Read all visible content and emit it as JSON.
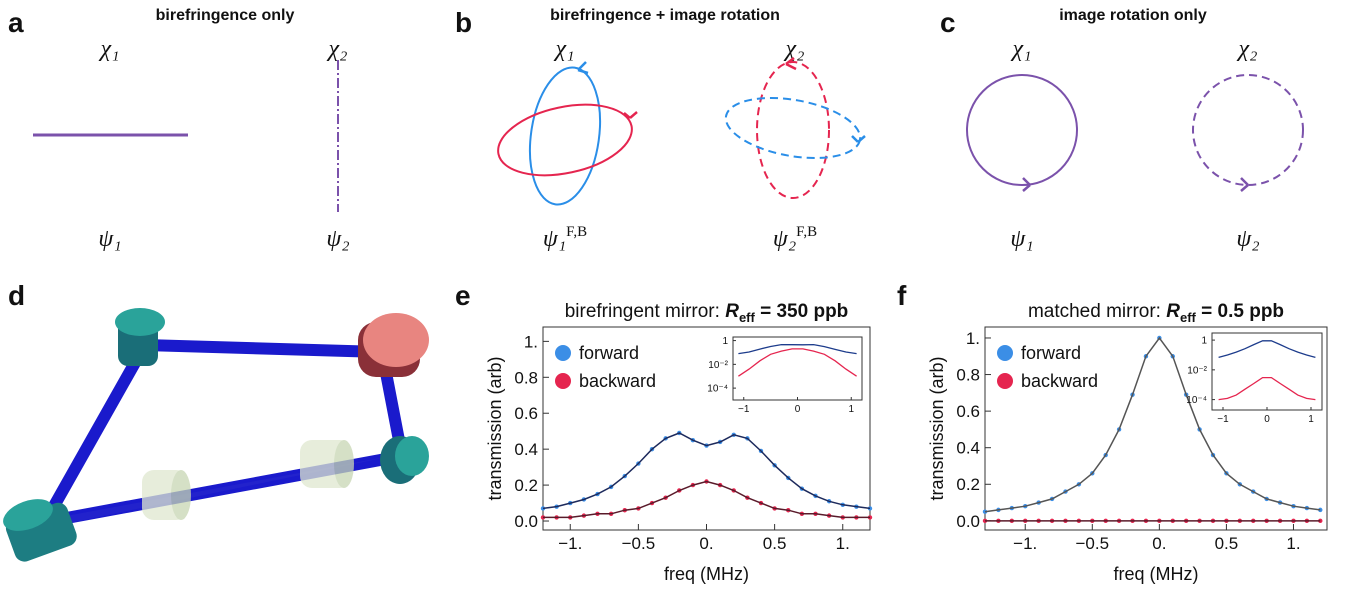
{
  "diagram": {
    "panels": [
      {
        "label": "a",
        "title": "birefringence only",
        "modes": [
          {
            "chi": "χ₁",
            "psi": "ψ₁"
          },
          {
            "chi": "χ₂",
            "psi": "ψ₂"
          }
        ]
      },
      {
        "label": "b",
        "title": "birefringence + image rotation",
        "modes": [
          {
            "chi": "χ₁",
            "psi": "ψ₁",
            "psi_superscript": "F,B"
          },
          {
            "chi": "χ₂",
            "psi": "ψ₂",
            "psi_superscript": "F,B"
          }
        ]
      },
      {
        "label": "c",
        "title": "image rotation only",
        "modes": [
          {
            "chi": "χ₁",
            "psi": "ψ₁"
          },
          {
            "chi": "χ₂",
            "psi": "ψ₂"
          }
        ]
      }
    ],
    "render_label": "d"
  },
  "chart_data": [
    {
      "type": "scatter",
      "panel_label": "e",
      "title": "birefringent mirror: ",
      "title_symbol": "R",
      "title_subscript": "eff",
      "title_rest": " = 350 ppb",
      "x_label": "freq (MHz)",
      "y_label": "transmission (arb)",
      "legend": "upper left",
      "x": [
        -1.2,
        -1.1,
        -1.0,
        -0.9,
        -0.8,
        -0.7,
        -0.6,
        -0.5,
        -0.4,
        -0.3,
        -0.2,
        -0.1,
        0,
        0.1,
        0.2,
        0.3,
        0.4,
        0.5,
        0.6,
        0.7,
        0.8,
        0.9,
        1.0,
        1.1,
        1.2
      ],
      "series": [
        {
          "name": "forward",
          "color": "#3b8ee6",
          "line_color": "#1d2a5c",
          "values": [
            0.07,
            0.08,
            0.1,
            0.12,
            0.15,
            0.19,
            0.25,
            0.32,
            0.4,
            0.46,
            0.49,
            0.45,
            0.42,
            0.44,
            0.48,
            0.46,
            0.39,
            0.31,
            0.24,
            0.18,
            0.14,
            0.11,
            0.09,
            0.08,
            0.07
          ]
        },
        {
          "name": "backward",
          "color": "#e5254f",
          "line_color": "#5a1a2a",
          "values": [
            0.02,
            0.02,
            0.02,
            0.03,
            0.04,
            0.04,
            0.06,
            0.07,
            0.1,
            0.13,
            0.17,
            0.2,
            0.22,
            0.2,
            0.17,
            0.13,
            0.1,
            0.07,
            0.06,
            0.04,
            0.04,
            0.03,
            0.02,
            0.02,
            0.02
          ]
        }
      ],
      "xlim": [
        -1.2,
        1.2
      ],
      "xticks": [
        {
          "value": -1,
          "label": "−1."
        },
        {
          "value": -0.5,
          "label": "−0.5"
        },
        {
          "value": 0,
          "label": "0."
        },
        0.5,
        {
          "value": 1,
          "label": "1."
        }
      ],
      "ylim": [
        -0.05,
        1.08
      ],
      "yticks": [
        {
          "value": 0,
          "label": "0.0"
        },
        0.2,
        0.4,
        0.6,
        0.8,
        {
          "value": 1,
          "label": "1."
        }
      ]
    },
    {
      "type": "scatter",
      "panel_label": "f",
      "title": "matched mirror: ",
      "title_symbol": "R",
      "title_subscript": "eff",
      "title_rest": " = 0.5 ppb",
      "x_label": "freq (MHz)",
      "y_label": "transmission (arb)",
      "legend": "upper left",
      "x": [
        -1.3,
        -1.2,
        -1.1,
        -1.0,
        -0.9,
        -0.8,
        -0.7,
        -0.6,
        -0.5,
        -0.4,
        -0.3,
        -0.2,
        -0.1,
        0,
        0.1,
        0.2,
        0.3,
        0.4,
        0.5,
        0.6,
        0.7,
        0.8,
        0.9,
        1.0,
        1.1,
        1.2
      ],
      "series": [
        {
          "name": "forward",
          "color": "#3b8ee6",
          "line_color": "#555555",
          "values": [
            0.05,
            0.06,
            0.07,
            0.08,
            0.1,
            0.12,
            0.16,
            0.2,
            0.26,
            0.36,
            0.5,
            0.69,
            0.9,
            1,
            0.9,
            0.69,
            0.5,
            0.36,
            0.26,
            0.2,
            0.16,
            0.12,
            0.1,
            0.08,
            0.07,
            0.06
          ]
        },
        {
          "name": "backward",
          "color": "#e5254f",
          "line_color": "#5a1a2a",
          "values": [
            0,
            0,
            0,
            0,
            0,
            0,
            0,
            0,
            0,
            0,
            0,
            0,
            0,
            0,
            0,
            0,
            0,
            0,
            0,
            0,
            0,
            0,
            0,
            0,
            0,
            0
          ]
        }
      ],
      "xlim": [
        -1.3,
        1.25
      ],
      "xticks": [
        {
          "value": -1,
          "label": "−1."
        },
        {
          "value": -0.5,
          "label": "−0.5"
        },
        {
          "value": 0,
          "label": "0."
        },
        0.5,
        {
          "value": 1,
          "label": "1."
        }
      ],
      "ylim": [
        -0.05,
        1.06
      ],
      "yticks": [
        {
          "value": 0,
          "label": "0.0"
        },
        0.2,
        0.4,
        0.6,
        0.8,
        {
          "value": 1,
          "label": "1."
        }
      ]
    },
    {
      "type": "line",
      "ylog": true,
      "x": [
        -1.1,
        -0.9,
        -0.7,
        -0.5,
        -0.3,
        -0.1,
        0.1,
        0.3,
        0.5,
        0.7,
        0.9,
        1.1
      ],
      "series": [
        {
          "color": "#1d3c8c",
          "values": [
            0.08,
            0.11,
            0.19,
            0.32,
            0.46,
            0.45,
            0.44,
            0.46,
            0.31,
            0.18,
            0.11,
            0.08
          ]
        },
        {
          "color": "#e5254f",
          "values": [
            0.001,
            0.004,
            0.02,
            0.07,
            0.13,
            0.2,
            0.2,
            0.13,
            0.07,
            0.02,
            0.004,
            0.001
          ]
        }
      ],
      "xlim": [
        -1.2,
        1.2
      ],
      "xticks": [
        {
          "value": -1,
          "label": "−1"
        },
        0,
        1
      ],
      "ylim": [
        1e-05,
        2
      ],
      "yticks": [
        1,
        {
          "value": 0.01,
          "label": "10⁻²"
        },
        {
          "value": 0.0001,
          "label": "10⁻⁴"
        }
      ]
    },
    {
      "type": "line",
      "ylog": true,
      "x": [
        -1.1,
        -0.9,
        -0.7,
        -0.5,
        -0.3,
        -0.1,
        0.1,
        0.3,
        0.5,
        0.7,
        0.9,
        1.1
      ],
      "series": [
        {
          "color": "#1d3c8c",
          "values": [
            0.069,
            0.1,
            0.155,
            0.265,
            0.5,
            0.9,
            0.9,
            0.5,
            0.265,
            0.155,
            0.1,
            0.069
          ]
        },
        {
          "color": "#e5254f",
          "values": [
            0.0001,
            0.00012,
            0.0002,
            0.0005,
            0.0012,
            0.003,
            0.003,
            0.0012,
            0.0005,
            0.0002,
            0.00012,
            0.0001
          ]
        }
      ],
      "xlim": [
        -1.25,
        1.25
      ],
      "xticks": [
        {
          "value": -1,
          "label": "−1"
        },
        0,
        1
      ],
      "ylim": [
        2e-05,
        3
      ],
      "yticks": [
        1,
        {
          "value": 0.01,
          "label": "10⁻²"
        },
        {
          "value": 0.0001,
          "label": "10⁻⁴"
        }
      ]
    }
  ]
}
